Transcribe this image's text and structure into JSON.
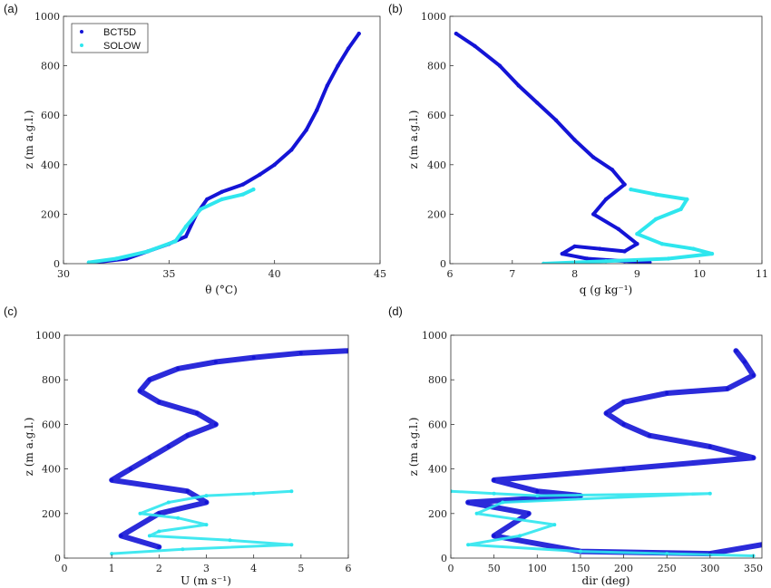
{
  "colors": {
    "bct5d": "#1414d6",
    "solow": "#2ee6ee"
  },
  "chart_data": [
    {
      "panel_label": "(a)",
      "type": "line",
      "xlabel": "θ (°C)",
      "ylabel": "z (m a.g.l.)",
      "xlim": [
        30,
        45
      ],
      "ylim": [
        0,
        1000
      ],
      "xticks": [
        "30",
        "35",
        "40",
        "45"
      ],
      "yticks": [
        "0",
        "200",
        "400",
        "600",
        "800",
        "1000"
      ],
      "legend": {
        "placement": "top-left",
        "entries": [
          "BCT5D",
          "SOLOW"
        ]
      },
      "series": [
        {
          "name": "BCT5D",
          "x": [
            31.5,
            33.0,
            34.0,
            35.0,
            35.8,
            36.3,
            36.8,
            37.5,
            38.5,
            39.3,
            40.0,
            40.8,
            41.5,
            42.0,
            42.5,
            43.0,
            43.5,
            44.0
          ],
          "y": [
            5,
            20,
            50,
            80,
            110,
            200,
            260,
            290,
            320,
            360,
            400,
            460,
            540,
            620,
            720,
            800,
            870,
            930
          ]
        },
        {
          "name": "SOLOW",
          "x": [
            31.2,
            32.5,
            34.0,
            35.3,
            35.8,
            36.5,
            37.5,
            38.5,
            39.0
          ],
          "y": [
            5,
            20,
            50,
            90,
            150,
            220,
            260,
            280,
            300
          ]
        }
      ]
    },
    {
      "panel_label": "(b)",
      "type": "line",
      "xlabel": "q (g kg⁻¹)",
      "ylabel": "z (m a.g.l.)",
      "xlim": [
        6,
        11
      ],
      "ylim": [
        0,
        1000
      ],
      "xticks": [
        "6",
        "7",
        "8",
        "9",
        "10",
        "11"
      ],
      "yticks": [
        "0",
        "200",
        "400",
        "600",
        "800",
        "1000"
      ],
      "series": [
        {
          "name": "BCT5D",
          "x": [
            6.1,
            6.4,
            6.8,
            7.1,
            7.4,
            7.7,
            8.0,
            8.3,
            8.6,
            8.8,
            8.5,
            8.3,
            8.7,
            9.0,
            8.8,
            8.4,
            8.0,
            7.8,
            8.2,
            8.8,
            9.2,
            9.0
          ],
          "y": [
            930,
            880,
            800,
            720,
            650,
            580,
            500,
            430,
            380,
            320,
            260,
            200,
            140,
            80,
            50,
            60,
            70,
            40,
            20,
            10,
            5,
            0
          ]
        },
        {
          "name": "SOLOW",
          "x": [
            8.9,
            9.3,
            9.8,
            9.7,
            9.3,
            9.0,
            9.4,
            9.9,
            10.2,
            9.5,
            8.5,
            7.5
          ],
          "y": [
            300,
            280,
            260,
            220,
            180,
            120,
            80,
            60,
            40,
            20,
            10,
            0
          ]
        }
      ]
    },
    {
      "panel_label": "(c)",
      "type": "scatter",
      "xlabel": "U (m s⁻¹)",
      "ylabel": "z (m a.g.l.)",
      "xlim": [
        0,
        6
      ],
      "ylim": [
        0,
        1000
      ],
      "xticks": [
        "0",
        "1",
        "2",
        "3",
        "4",
        "5",
        "6"
      ],
      "yticks": [
        "0",
        "200",
        "400",
        "600",
        "800",
        "1000"
      ],
      "series": [
        {
          "name": "BCT5D",
          "x": [
            6.0,
            5.0,
            4.0,
            3.2,
            2.4,
            1.8,
            1.6,
            2.0,
            2.8,
            3.2,
            2.6,
            2.2,
            1.8,
            1.4,
            1.0,
            2.6,
            3.0,
            2.0,
            1.2,
            2.0
          ],
          "y": [
            930,
            920,
            900,
            880,
            850,
            800,
            750,
            700,
            650,
            600,
            550,
            500,
            450,
            400,
            350,
            300,
            250,
            200,
            100,
            50
          ]
        },
        {
          "name": "SOLOW",
          "x": [
            4.8,
            4.0,
            3.0,
            2.2,
            1.6,
            2.4,
            3.0,
            2.0,
            1.8,
            3.5,
            4.8,
            2.5,
            1.0
          ],
          "y": [
            300,
            290,
            280,
            250,
            200,
            180,
            150,
            120,
            100,
            80,
            60,
            40,
            20
          ]
        }
      ]
    },
    {
      "panel_label": "(d)",
      "type": "scatter",
      "xlabel": "dir (deg)",
      "ylabel": "z (m a.g.l.)",
      "xlim": [
        0,
        360
      ],
      "ylim": [
        0,
        1000
      ],
      "xticks": [
        "0",
        "50",
        "100",
        "150",
        "200",
        "250",
        "300",
        "350"
      ],
      "yticks": [
        "0",
        "200",
        "400",
        "600",
        "800",
        "1000"
      ],
      "series": [
        {
          "name": "BCT5D",
          "x": [
            330,
            340,
            350,
            320,
            250,
            200,
            180,
            200,
            230,
            300,
            350,
            200,
            50,
            100,
            150,
            20,
            90,
            50,
            150,
            300,
            360
          ],
          "y": [
            930,
            880,
            820,
            760,
            740,
            700,
            650,
            600,
            550,
            500,
            450,
            400,
            350,
            300,
            280,
            250,
            200,
            100,
            30,
            20,
            60
          ]
        },
        {
          "name": "SOLOW",
          "x": [
            0,
            50,
            100,
            300,
            60,
            30,
            120,
            80,
            20,
            150,
            250,
            350
          ],
          "y": [
            300,
            290,
            280,
            290,
            250,
            200,
            150,
            100,
            60,
            30,
            20,
            10
          ]
        }
      ]
    }
  ]
}
